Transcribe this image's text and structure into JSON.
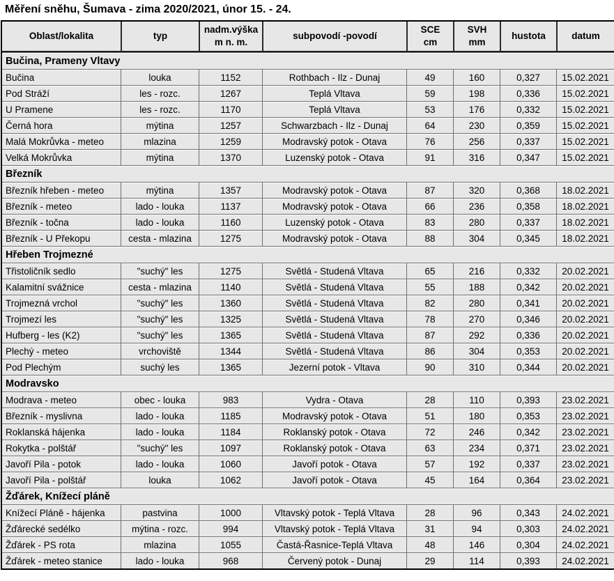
{
  "title": "Měření sněhu, Šumava - zima 2020/2021, únor 15. - 24.",
  "colors": {
    "cell_background": "#e7e7e7",
    "gridline": "#6f6f6f",
    "outer_border": "#000000",
    "row_highlight": "#ffffff",
    "text": "#000000"
  },
  "table": {
    "columns": [
      "Oblast/lokalita",
      "typ",
      [
        "nadm.výška",
        "m n. m."
      ],
      "subpovodí -povodí",
      [
        "SCE",
        "cm"
      ],
      [
        "SVH",
        "mm"
      ],
      "hustota",
      "datum"
    ],
    "column_keys": [
      "oblast-lokalita",
      "typ",
      "nadm-vyska",
      "subpovodi-povodi",
      "sce-cm",
      "svh-mm",
      "hustota",
      "datum"
    ],
    "sections": [
      {
        "name": "Bučina, Prameny Vltavy",
        "rows": [
          [
            "Bučina",
            "louka",
            "1152",
            "Rothbach - Ilz - Dunaj",
            "49",
            "160",
            "0,327",
            "15.02.2021"
          ],
          [
            "Pod Stráží",
            "les - rozc.",
            "1267",
            "Teplá Vltava",
            "59",
            "198",
            "0,336",
            "15.02.2021"
          ],
          [
            "U Pramene",
            "les - rozc.",
            "1170",
            "Teplá Vltava",
            "53",
            "176",
            "0,332",
            "15.02.2021"
          ],
          [
            "Černá hora",
            "mýtina",
            "1257",
            "Schwarzbach - Ilz - Dunaj",
            "64",
            "230",
            "0,359",
            "15.02.2021"
          ],
          [
            "Malá Mokrůvka - meteo",
            "mlazina",
            "1259",
            "Modravský potok - Otava",
            "76",
            "256",
            "0,337",
            "15.02.2021"
          ],
          [
            "Velká Mokrůvka",
            "mýtina",
            "1370",
            "Luzenský potok - Otava",
            "91",
            "316",
            "0,347",
            "15.02.2021"
          ]
        ]
      },
      {
        "name": "Březník",
        "rows": [
          [
            "Březník hřeben - meteo",
            "mýtina",
            "1357",
            "Modravský potok - Otava",
            "87",
            "320",
            "0,368",
            "18.02.2021"
          ],
          [
            "Březník - meteo",
            "lado - louka",
            "1137",
            "Modravský potok - Otava",
            "66",
            "236",
            "0,358",
            "18.02.2021"
          ],
          [
            "Březník - točna",
            "lado - louka",
            "1160",
            "Luzenský potok - Otava",
            "83",
            "280",
            "0,337",
            "18.02.2021"
          ],
          [
            "Březník - U Překopu",
            "cesta - mlazina",
            "1275",
            "Modravský potok - Otava",
            "88",
            "304",
            "0,345",
            "18.02.2021"
          ]
        ]
      },
      {
        "name": "Hřeben Trojmezné",
        "rows": [
          [
            "Třistoličník sedlo",
            "\"suchý\" les",
            "1275",
            "Světlá - Studená Vltava",
            "65",
            "216",
            "0,332",
            "20.02.2021"
          ],
          [
            "Kalamitní svážnice",
            "cesta - mlazina",
            "1140",
            "Světlá - Studená Vltava",
            "55",
            "188",
            "0,342",
            "20.02.2021"
          ],
          [
            "Trojmezná vrchol",
            "\"suchý\" les",
            "1360",
            "Světlá - Studená Vltava",
            "82",
            "280",
            "0,341",
            "20.02.2021"
          ],
          [
            "Trojmezí les",
            "\"suchý\" les",
            "1325",
            "Světlá - Studená Vltava",
            "78",
            "270",
            "0,346",
            "20.02.2021"
          ],
          [
            "Hufberg - les (K2)",
            "\"suchý\" les",
            "1365",
            "Světlá - Studená Vltava",
            "87",
            "292",
            "0,336",
            "20.02.2021"
          ],
          [
            "Plechý - meteo",
            "vrchoviště",
            "1344",
            "Světlá - Studená Vltava",
            "86",
            "304",
            "0,353",
            "20.02.2021"
          ],
          [
            "Pod Plechým",
            "suchý les",
            "1365",
            "Jezerní potok - Vltava",
            "90",
            "310",
            "0,344",
            "20.02.2021"
          ]
        ]
      },
      {
        "name": "Modravsko",
        "rows": [
          [
            "Modrava - meteo",
            "obec - louka",
            "983",
            "Vydra - Otava",
            "28",
            "110",
            "0,393",
            "23.02.2021"
          ],
          [
            "Březník - myslivna",
            "lado - louka",
            "1185",
            "Modravský potok - Otava",
            "51",
            "180",
            "0,353",
            "23.02.2021"
          ],
          [
            "Roklanská hájenka",
            "lado - louka",
            "1184",
            "Roklanský potok - Otava",
            "72",
            "246",
            "0,342",
            "23.02.2021"
          ],
          [
            "Rokytka - polštář",
            "\"suchý\" les",
            "1097",
            "Roklanský potok - Otava",
            "63",
            "234",
            "0,371",
            "23.02.2021"
          ],
          [
            "Javoří Pila - potok",
            "lado - louka",
            "1060",
            "Javoří potok - Otava",
            "57",
            "192",
            "0,337",
            "23.02.2021"
          ],
          [
            "Javoří Pila - polštář",
            "louka",
            "1062",
            "Javoří potok - Otava",
            "45",
            "164",
            "0,364",
            "23.02.2021"
          ]
        ]
      },
      {
        "name": "Žďárek, Knížecí pláně",
        "rows": [
          [
            "Knížecí Pláně - hájenka",
            "pastvina",
            "1000",
            "Vltavský potok - Teplá Vltava",
            "28",
            "96",
            "0,343",
            "24.02.2021"
          ],
          [
            "Žďárecké sedélko",
            "mýtina - rozc.",
            "994",
            "Vltavský potok - Teplá Vltava",
            "31",
            "94",
            "0,303",
            "24.02.2021"
          ],
          [
            "Žďárek - PS rota",
            "mlazina",
            "1055",
            "Častá-Řasnice-Teplá Vltava",
            "48",
            "146",
            "0,304",
            "24.02.2021"
          ],
          [
            "Žďárek - meteo stanice",
            "lado - louka",
            "968",
            "Červený potok - Dunaj",
            "29",
            "114",
            "0,393",
            "24.02.2021"
          ]
        ]
      }
    ]
  }
}
